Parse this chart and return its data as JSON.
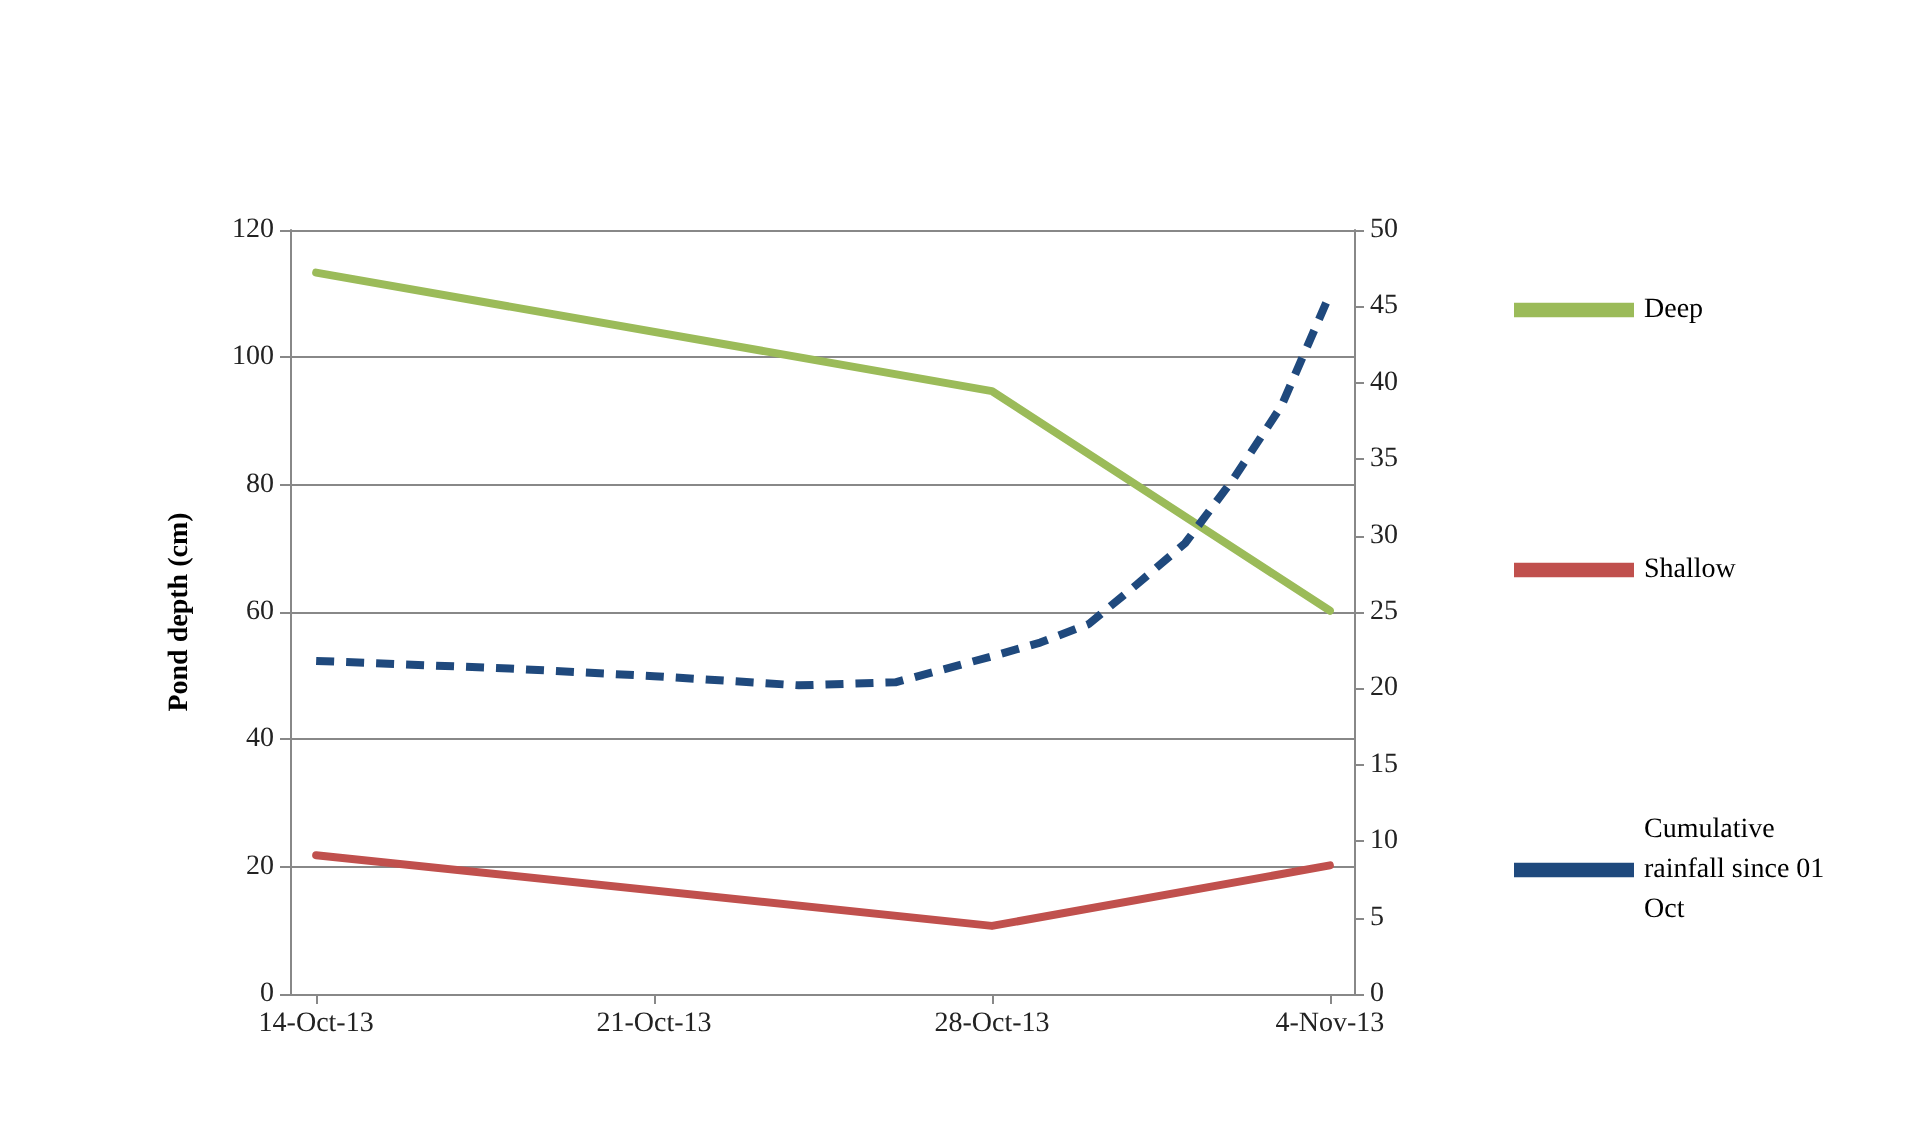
{
  "chart_data": {
    "type": "line",
    "ylabel": "Pond depth (cm)",
    "xlim": [
      "--10-13T11:00",
      "--11-04T12:00"
    ],
    "xticks": [
      {
        "value": "--10-14",
        "label": "14-Oct-13"
      },
      {
        "value": "--10-21",
        "label": "21-Oct-13"
      },
      {
        "value": "--10-28",
        "label": "28-Oct-13"
      },
      {
        "value": "--11-04",
        "label": "4-Nov-13"
      }
    ],
    "ylim": [
      0,
      120
    ],
    "yticks": [
      0,
      20,
      40,
      60,
      80,
      100,
      120
    ],
    "y2lim": [
      0,
      50
    ],
    "y2ticks": [
      0,
      5,
      10,
      15,
      20,
      25,
      30,
      35,
      40,
      45,
      50
    ],
    "grid": "y",
    "legend": "right",
    "marker": "none",
    "series": [
      {
        "name": "Deep",
        "color": "#9bbb59",
        "x": [
          "--10-14",
          "--10-28",
          "--11-04"
        ],
        "values": [
          113.3,
          94.7,
          60.2
        ]
      },
      {
        "name": "Shallow",
        "color": "#c0504d",
        "x": [
          "--10-14",
          "--10-28",
          "--11-04"
        ],
        "values": [
          21.8,
          10.7,
          20.2
        ]
      },
      {
        "name": "Cumulative rainfall since 01 Oct",
        "color": "#1f497d",
        "axis": "y2",
        "line_style": "dashed",
        "x": [
          "--10-14",
          "--10-18",
          "--10-21",
          "--10-24",
          "--10-26",
          "--10-28",
          "--10-29",
          "--10-30",
          "--10-31",
          "--11-01",
          "--11-02",
          "--11-03",
          "--11-04"
        ],
        "values": [
          21.8,
          21.3,
          20.8,
          20.2,
          20.4,
          22.1,
          23,
          24.2,
          26.8,
          29.5,
          33.7,
          38.5,
          45.8
        ]
      }
    ]
  }
}
